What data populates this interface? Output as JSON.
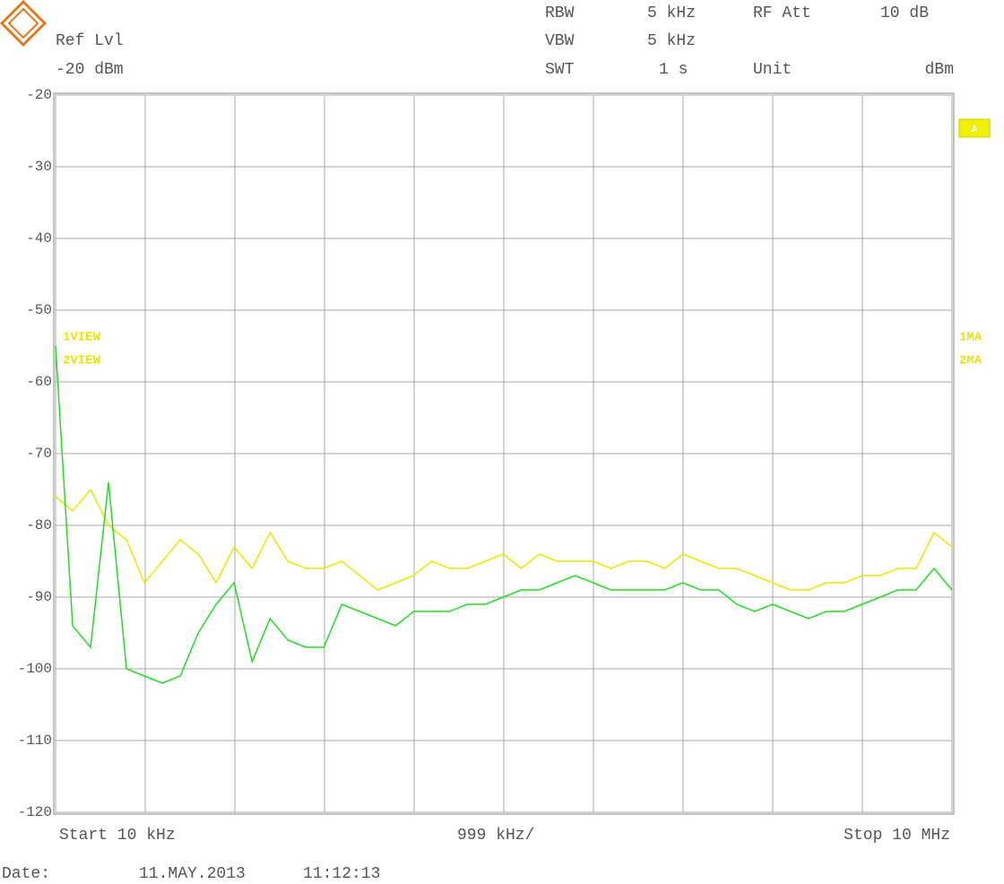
{
  "chart_data": {
    "type": "line",
    "header": {
      "rbw_label": "RBW",
      "rbw_value": "5 kHz",
      "rf_att_label": "RF Att",
      "rf_att_value": "10 dB",
      "ref_lvl_label": "Ref Lvl",
      "ref_lvl_value": "-20 dBm",
      "vbw_label": "VBW",
      "vbw_value": "5 kHz",
      "swt_label": "SWT",
      "swt_value": "1 s",
      "unit_label": "Unit",
      "unit_value": "dBm"
    },
    "trace_labels": {
      "left_1": "1VIEW",
      "left_2": "2VIEW",
      "right_1": "1MA",
      "right_2": "2MA",
      "marker": "A"
    },
    "footer": {
      "start": "Start 10 kHz",
      "span": "999 kHz/",
      "stop": "Stop 10 MHz",
      "date_label": "Date:",
      "date": "11.MAY.2013",
      "time": "11:12:13"
    },
    "x": [
      10,
      200,
      400,
      600,
      800,
      1000,
      1200,
      1400,
      1600,
      1800,
      2000,
      2200,
      2400,
      2600,
      2800,
      3000,
      3200,
      3400,
      3600,
      3800,
      4000,
      4200,
      4400,
      4600,
      4800,
      5000,
      5200,
      5400,
      5600,
      5800,
      6000,
      6200,
      6400,
      6600,
      6800,
      7000,
      7200,
      7400,
      7600,
      7800,
      8000,
      8200,
      8400,
      8600,
      8800,
      9000,
      9200,
      9400,
      9600,
      9800,
      10000
    ],
    "xlim": [
      10,
      10000
    ],
    "xticks": [
      10,
      1009,
      2008,
      3007,
      4006,
      5005,
      6004,
      7003,
      8002,
      9001,
      10000
    ],
    "ylim": [
      -120,
      -20
    ],
    "yticks": [
      -20,
      -30,
      -40,
      -50,
      -60,
      -70,
      -80,
      -90,
      -100,
      -110,
      -120
    ],
    "grid": true,
    "series": [
      {
        "color": "#e8e800",
        "values": [
          -76,
          -78,
          -75,
          -80,
          -82,
          -88,
          -85,
          -82,
          -84,
          -88,
          -83,
          -86,
          -81,
          -85,
          -86,
          -86,
          -85,
          -87,
          -89,
          -88,
          -87,
          -85,
          -86,
          -86,
          -85,
          -84,
          -86,
          -84,
          -85,
          -85,
          -85,
          -86,
          -85,
          -85,
          -86,
          -84,
          -85,
          -86,
          -86,
          -87,
          -88,
          -89,
          -89,
          -88,
          -88,
          -87,
          -87,
          -86,
          -86,
          -81,
          -83
        ]
      },
      {
        "color": "#22dd22",
        "values": [
          -55,
          -94,
          -97,
          -74,
          -100,
          -101,
          -102,
          -101,
          -95,
          -91,
          -88,
          -99,
          -93,
          -96,
          -97,
          -97,
          -91,
          -92,
          -93,
          -94,
          -92,
          -92,
          -92,
          -91,
          -91,
          -90,
          -89,
          -89,
          -88,
          -87,
          -88,
          -89,
          -89,
          -89,
          -89,
          -88,
          -89,
          -89,
          -91,
          -92,
          -91,
          -92,
          -93,
          -92,
          -92,
          -91,
          -90,
          -89,
          -89,
          -86,
          -89
        ]
      }
    ]
  }
}
